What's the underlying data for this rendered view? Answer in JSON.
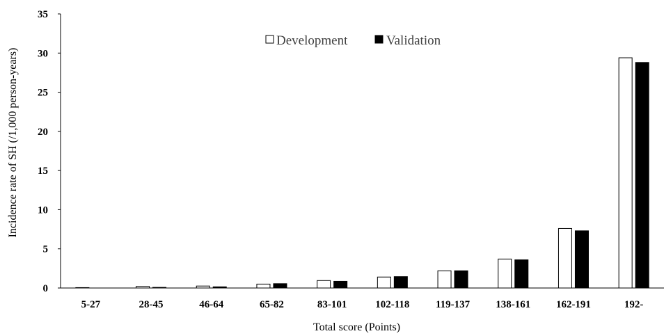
{
  "chart_data": {
    "type": "bar",
    "title": "",
    "xlabel": "Total score (Points)",
    "ylabel": "Incidence rate of SH (/1,000 person-years)",
    "categories": [
      "5-27",
      "28-45",
      "46-64",
      "65-82",
      "83-101",
      "102-118",
      "119-137",
      "138-161",
      "162-191",
      "192-"
    ],
    "series": [
      {
        "name": "Development",
        "values": [
          0.05,
          0.2,
          0.25,
          0.5,
          0.95,
          1.4,
          2.2,
          3.7,
          7.6,
          29.4
        ],
        "fill": "#ffffff",
        "stroke": "#000000"
      },
      {
        "name": "Validation",
        "values": [
          0.0,
          0.08,
          0.15,
          0.55,
          0.85,
          1.45,
          2.2,
          3.6,
          7.3,
          28.8
        ],
        "fill": "#000000",
        "stroke": "#000000"
      }
    ],
    "ylim": [
      0,
      35
    ],
    "yticks": [
      0,
      5,
      10,
      15,
      20,
      25,
      30,
      35
    ],
    "grid": false,
    "legend_position": "top-center"
  }
}
